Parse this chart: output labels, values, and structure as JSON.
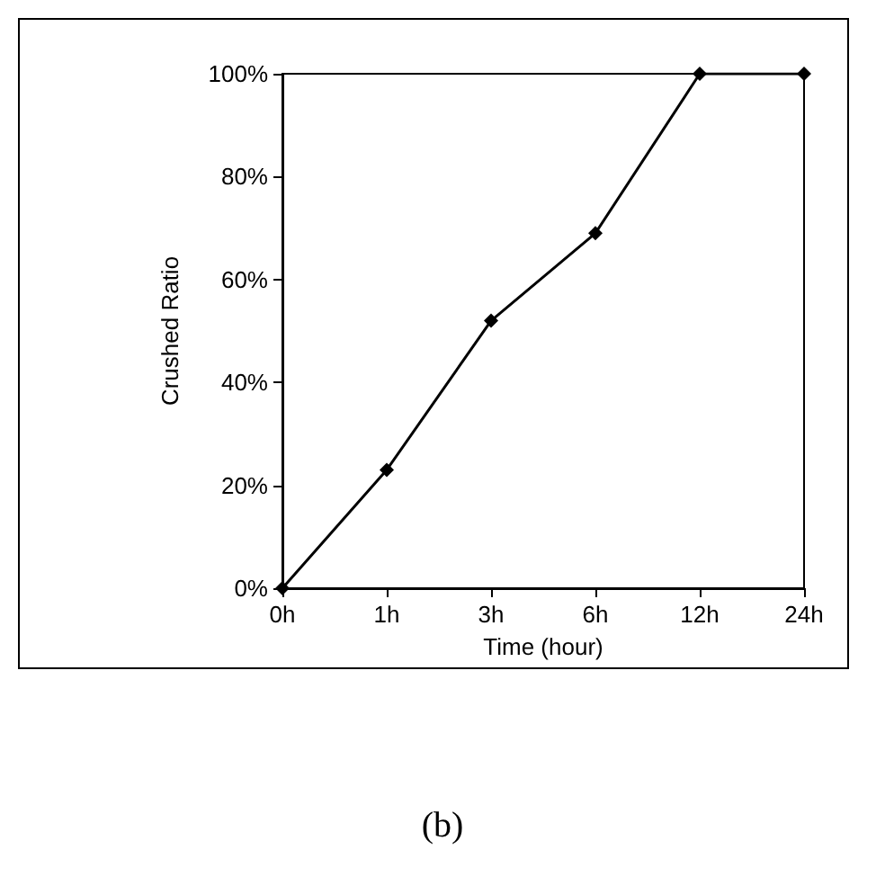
{
  "chart_data": {
    "type": "line",
    "xlabel": "Time (hour)",
    "ylabel": "Crushed Ratio",
    "categories": [
      "0h",
      "1h",
      "3h",
      "6h",
      "12h",
      "24h"
    ],
    "series": [
      {
        "color": "#000000",
        "values": [
          0,
          23,
          52,
          69,
          100,
          100
        ]
      }
    ],
    "ylim": [
      0,
      100
    ],
    "yticks": [
      {
        "value": 0,
        "label": "0%"
      },
      {
        "value": 20,
        "label": "20%"
      },
      {
        "value": 40,
        "label": "40%"
      },
      {
        "value": 60,
        "label": "60%"
      },
      {
        "value": 80,
        "label": "80%"
      },
      {
        "value": 100,
        "label": "100%"
      }
    ],
    "grid": false,
    "marker": "diamond",
    "line_style": "solid",
    "annotations": [
      "(b)"
    ]
  }
}
